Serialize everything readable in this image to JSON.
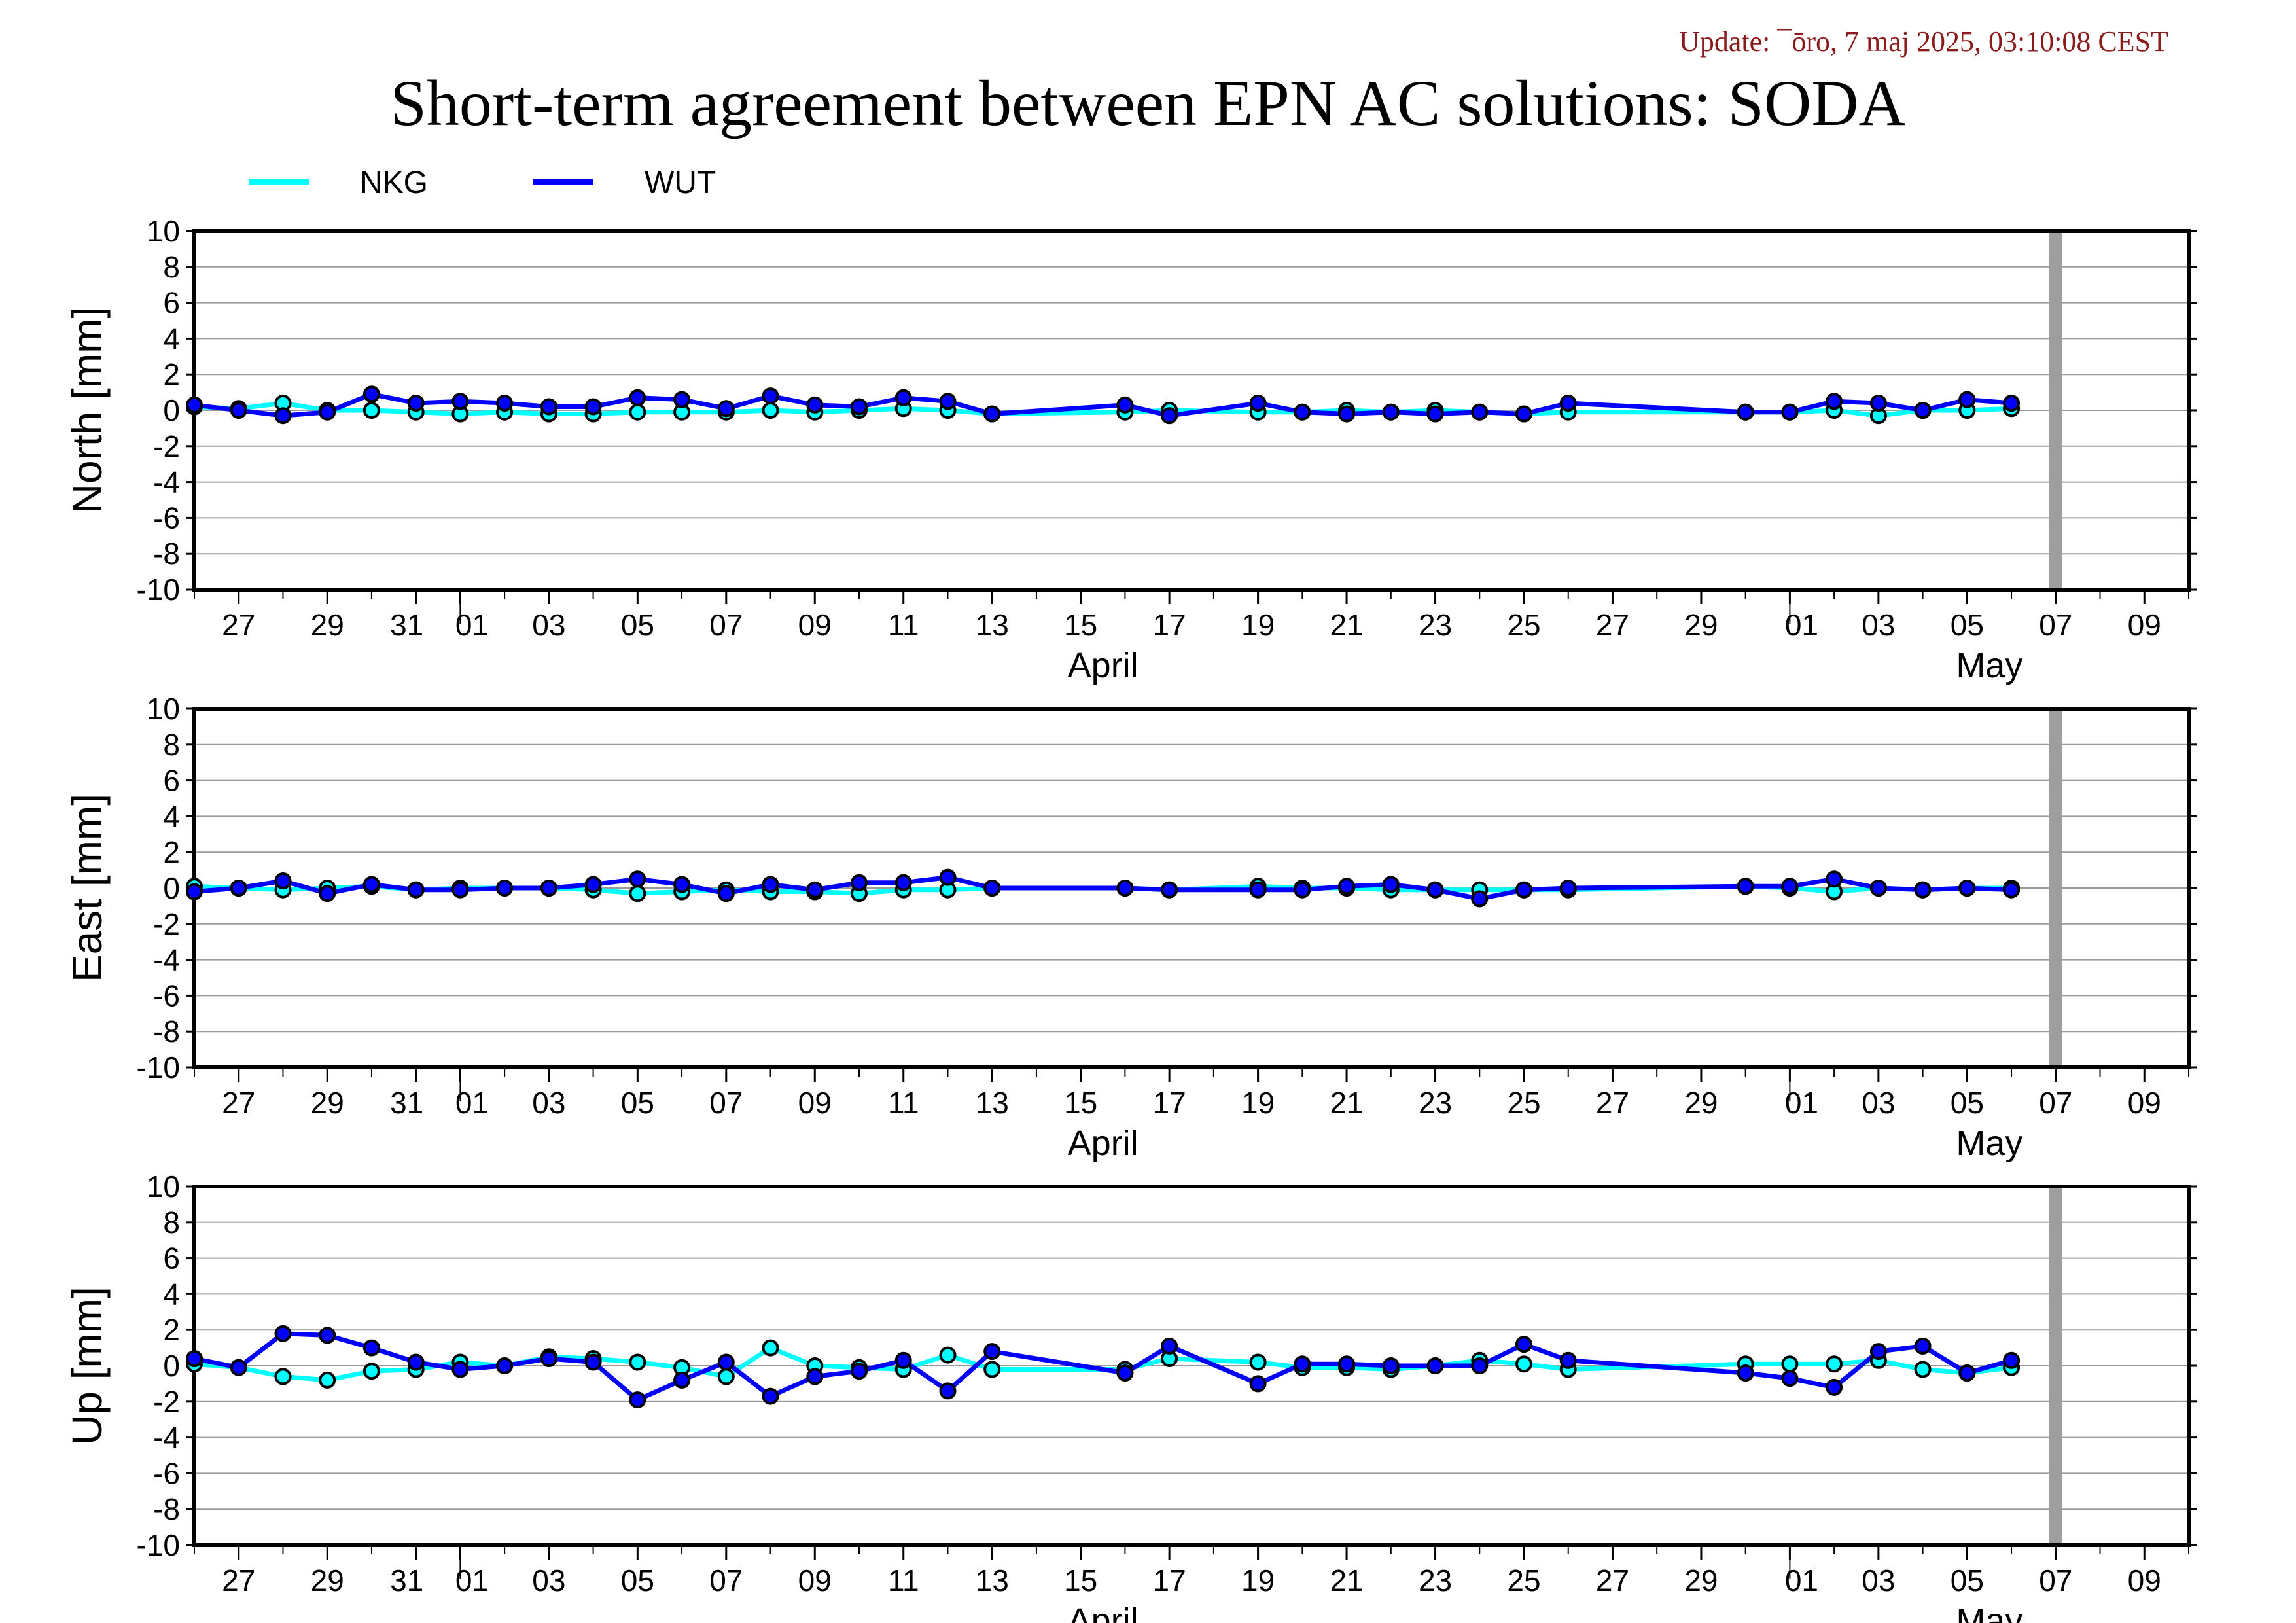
{
  "update_text": "Update: ¯ōro, 7 maj 2025, 03:10:08 CEST",
  "title": "Short-term agreement between EPN AC solutions: SODA",
  "chart_data": {
    "type": "line",
    "legend_position": "top-left",
    "series_meta": [
      {
        "name": "NKG",
        "color": "#00ffff"
      },
      {
        "name": "WUT",
        "color": "#0000ff"
      }
    ],
    "x_days": [
      "2025-03-26",
      "2025-03-27",
      "2025-03-28",
      "2025-03-29",
      "2025-03-30",
      "2025-03-31",
      "2025-04-01",
      "2025-04-02",
      "2025-04-03",
      "2025-04-04",
      "2025-04-05",
      "2025-04-06",
      "2025-04-07",
      "2025-04-08",
      "2025-04-09",
      "2025-04-10",
      "2025-04-11",
      "2025-04-12",
      "2025-04-13",
      "2025-04-16",
      "2025-04-17",
      "2025-04-19",
      "2025-04-20",
      "2025-04-21",
      "2025-04-22",
      "2025-04-23",
      "2025-04-24",
      "2025-04-25",
      "2025-04-26",
      "2025-04-30",
      "2025-05-01",
      "2025-05-02",
      "2025-05-03",
      "2025-05-04",
      "2025-05-05",
      "2025-05-06"
    ],
    "x_range": [
      "2025-03-26",
      "2025-05-10"
    ],
    "highlight_day": "2025-05-07",
    "x_tick_labels": [
      "27",
      "29",
      "31",
      "01",
      "03",
      "05",
      "07",
      "09",
      "11",
      "13",
      "15",
      "17",
      "19",
      "21",
      "23",
      "25",
      "27",
      "29",
      "01",
      "03",
      "05",
      "07",
      "09"
    ],
    "x_tick_days": [
      "2025-03-27",
      "2025-03-29",
      "2025-03-31",
      "2025-04-01",
      "2025-04-03",
      "2025-04-05",
      "2025-04-07",
      "2025-04-09",
      "2025-04-11",
      "2025-04-13",
      "2025-04-15",
      "2025-04-17",
      "2025-04-19",
      "2025-04-21",
      "2025-04-23",
      "2025-04-25",
      "2025-04-27",
      "2025-04-29",
      "2025-05-01",
      "2025-05-03",
      "2025-05-05",
      "2025-05-07",
      "2025-05-09"
    ],
    "month_labels": [
      {
        "label": "April",
        "day": "2025-04-15"
      },
      {
        "label": "May",
        "day": "2025-05-05"
      }
    ],
    "month_boundaries": [
      "2025-04-01",
      "2025-05-01"
    ],
    "grid": true,
    "panels": [
      {
        "ylabel": "North [mm]",
        "ylim": [
          -10,
          10
        ],
        "yticks": [
          "10",
          "8",
          "6",
          "4",
          "2",
          "0",
          "-2",
          "-4",
          "-6",
          "-8",
          "-10"
        ],
        "series": [
          {
            "name": "NKG",
            "values": [
              0.2,
              0.1,
              0.4,
              0.0,
              0.0,
              -0.1,
              -0.2,
              -0.1,
              -0.2,
              -0.2,
              -0.1,
              -0.1,
              -0.1,
              0.0,
              -0.1,
              0.0,
              0.1,
              0.0,
              -0.2,
              -0.1,
              0.0,
              -0.1,
              -0.1,
              0.0,
              -0.1,
              0.0,
              -0.1,
              -0.2,
              -0.1,
              -0.1,
              -0.1,
              0.0,
              -0.3,
              0.0,
              0.0,
              0.1
            ]
          },
          {
            "name": "WUT",
            "values": [
              0.3,
              0.0,
              -0.3,
              -0.1,
              0.9,
              0.4,
              0.5,
              0.4,
              0.2,
              0.2,
              0.7,
              0.6,
              0.1,
              0.8,
              0.3,
              0.2,
              0.7,
              0.5,
              -0.2,
              0.3,
              -0.3,
              0.4,
              -0.1,
              -0.2,
              -0.1,
              -0.2,
              -0.1,
              -0.2,
              0.4,
              -0.1,
              -0.1,
              0.5,
              0.4,
              0.0,
              0.6,
              0.4
            ]
          }
        ]
      },
      {
        "ylabel": "East [mm]",
        "ylim": [
          -10,
          10
        ],
        "yticks": [
          "10",
          "8",
          "6",
          "4",
          "2",
          "0",
          "-2",
          "-4",
          "-6",
          "-8",
          "-10"
        ],
        "series": [
          {
            "name": "NKG",
            "values": [
              0.1,
              0.0,
              -0.1,
              0.0,
              0.1,
              -0.1,
              0.0,
              0.0,
              0.0,
              -0.1,
              -0.3,
              -0.2,
              -0.1,
              -0.2,
              -0.2,
              -0.3,
              -0.1,
              -0.1,
              0.0,
              0.0,
              -0.1,
              0.1,
              0.0,
              0.0,
              -0.1,
              -0.1,
              -0.1,
              -0.1,
              -0.1,
              0.1,
              0.0,
              -0.2,
              0.0,
              -0.1,
              0.0,
              0.0
            ]
          },
          {
            "name": "WUT",
            "values": [
              -0.2,
              0.0,
              0.4,
              -0.3,
              0.2,
              -0.1,
              -0.1,
              0.0,
              0.0,
              0.2,
              0.5,
              0.2,
              -0.3,
              0.2,
              -0.1,
              0.3,
              0.3,
              0.6,
              0.0,
              0.0,
              -0.1,
              -0.1,
              -0.1,
              0.1,
              0.2,
              -0.1,
              -0.6,
              -0.1,
              0.0,
              0.1,
              0.1,
              0.5,
              0.0,
              -0.1,
              0.0,
              -0.1
            ]
          }
        ]
      },
      {
        "ylabel": "Up [mm]",
        "ylim": [
          -10,
          10
        ],
        "yticks": [
          "10",
          "8",
          "6",
          "4",
          "2",
          "0",
          "-2",
          "-4",
          "-6",
          "-8",
          "-10"
        ],
        "series": [
          {
            "name": "NKG",
            "values": [
              0.1,
              -0.1,
              -0.6,
              -0.8,
              -0.3,
              -0.2,
              0.2,
              0.0,
              0.5,
              0.4,
              0.2,
              -0.1,
              -0.6,
              1.0,
              0.0,
              -0.1,
              -0.2,
              0.6,
              -0.2,
              -0.2,
              0.4,
              0.2,
              -0.1,
              -0.1,
              -0.2,
              0.0,
              0.3,
              0.1,
              -0.2,
              0.1,
              0.1,
              0.1,
              0.3,
              -0.2,
              -0.4,
              -0.1
            ]
          },
          {
            "name": "WUT",
            "values": [
              0.4,
              -0.1,
              1.8,
              1.7,
              1.0,
              0.2,
              -0.2,
              0.0,
              0.4,
              0.2,
              -1.9,
              -0.8,
              0.2,
              -1.7,
              -0.6,
              -0.3,
              0.3,
              -1.4,
              0.8,
              -0.4,
              1.1,
              -1.0,
              0.1,
              0.1,
              0.0,
              0.0,
              0.0,
              1.2,
              0.3,
              -0.4,
              -0.7,
              -1.2,
              0.8,
              1.1,
              -0.4,
              0.3
            ]
          }
        ]
      }
    ]
  }
}
